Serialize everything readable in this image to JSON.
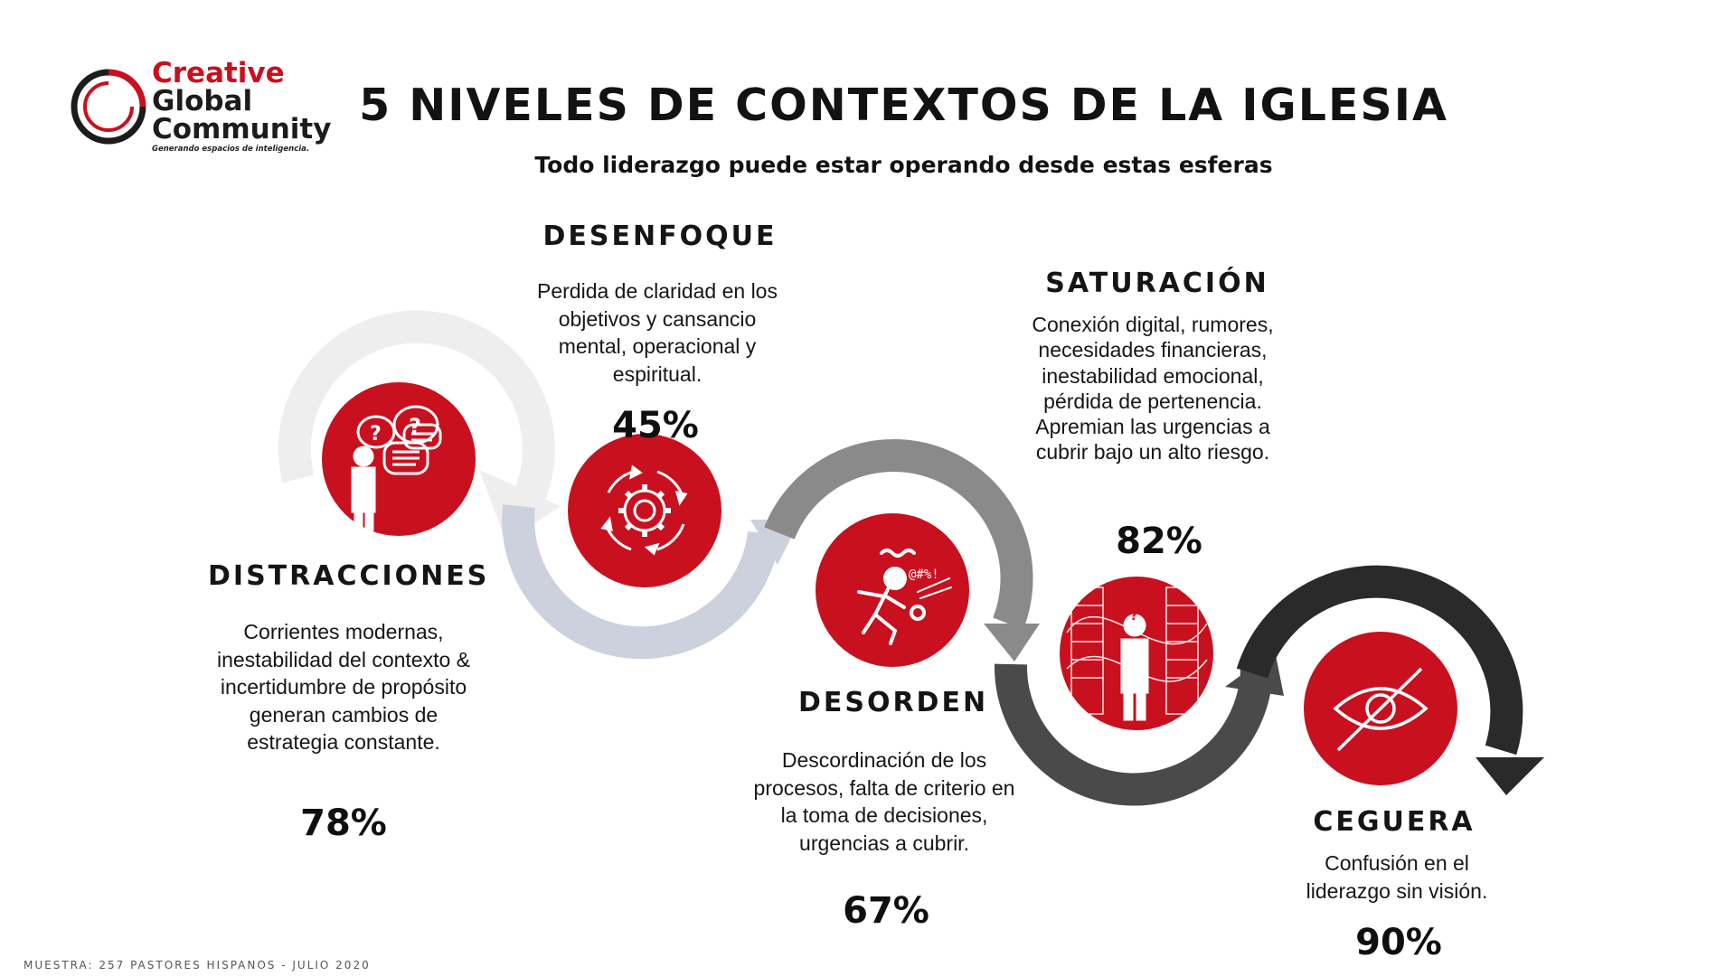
{
  "logo": {
    "line1": "Creative",
    "line2": "Global",
    "line3": "Community",
    "tagline": "Generando espacios de inteligencia."
  },
  "header": {
    "title": "5 NIVELES DE CONTEXTOS DE LA IGLESIA",
    "subtitle": "Todo liderazgo puede estar operando desde estas esferas"
  },
  "stages": [
    {
      "title": "DISTRACCIONES",
      "description": "Corrientes modernas, inestabilidad del contexto & incertidumbre de propósito generan cambios de estrategia constante.",
      "percent": "78%",
      "icon": "confused-person-speech-bubbles-icon"
    },
    {
      "title": "DESENFOQUE",
      "description": "Perdida de claridad en los objetivos y cansancio mental, operacional y espiritual.",
      "percent": "45%",
      "icon": "gear-cycle-icon"
    },
    {
      "title": "DESORDEN",
      "description": "Descordinación de los procesos, falta de criterio en la toma de decisiones, urgencias a cubrir.",
      "percent": "67%",
      "icon": "stressed-running-person-icon"
    },
    {
      "title": "SATURACIÓN",
      "description": "Conexión digital, rumores, necesidades financieras, inestabilidad emocional, pérdida de pertenencia. Apremian las urgencias a cubrir bajo un alto riesgo.",
      "percent": "82%",
      "icon": "overwhelmed-person-icon"
    },
    {
      "title": "CEGUERA",
      "description": "Confusión en el liderazgo sin visión.",
      "percent": "90%",
      "icon": "eye-slash-icon"
    }
  ],
  "footer": {
    "note": "MUESTRA: 257 PASTORES HISPANOS - JULIO 2020"
  },
  "colors": {
    "accent_red": "#c8101e",
    "arc_light": "#eeeeee",
    "arc_blue_gray": "#ccd1dd",
    "arc_gray": "#8a8a8a",
    "arc_dark_gray": "#4a4a4a",
    "arc_black": "#2a2a2a"
  }
}
